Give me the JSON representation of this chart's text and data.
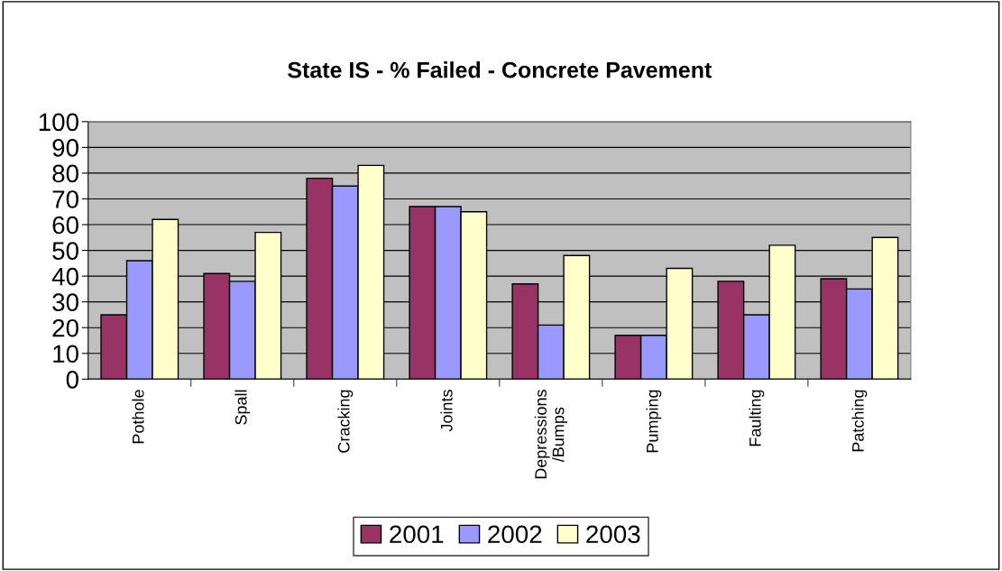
{
  "chart_data": {
    "type": "bar",
    "title": "State IS - % Failed - Concrete Pavement",
    "categories": [
      "Pothole",
      "Spall",
      "Cracking",
      "Joints",
      "Depressions\n/Bumps",
      "Pumping",
      "Faulting",
      "Patching"
    ],
    "series": [
      {
        "name": "2001",
        "color": "#993366",
        "values": [
          25,
          41,
          78,
          67,
          37,
          17,
          38,
          39
        ]
      },
      {
        "name": "2002",
        "color": "#9999ff",
        "values": [
          46,
          38,
          75,
          67,
          21,
          17,
          25,
          35
        ]
      },
      {
        "name": "2003",
        "color": "#ffffcc",
        "values": [
          62,
          57,
          83,
          65,
          48,
          43,
          52,
          55
        ]
      }
    ],
    "ylim": [
      0,
      100
    ],
    "yticks": [
      0,
      10,
      20,
      30,
      40,
      50,
      60,
      70,
      80,
      90,
      100
    ],
    "grid": "y",
    "legend": "bottom"
  }
}
